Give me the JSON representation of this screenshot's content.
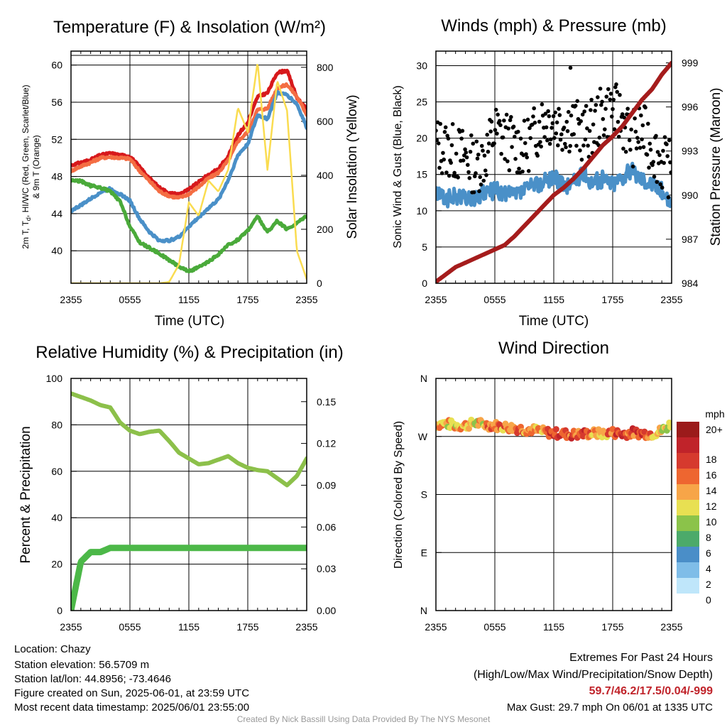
{
  "charts": {
    "temperature": {
      "title": "Temperature (F) & Insolation (W/m²)",
      "ylabel_left": [
        "2m T, T",
        "d",
        ", HI/WC (Red, Green, Scarlet/Blue)",
        "& 9m T (Orange)"
      ],
      "ylabel_right": "Solar Insolation (Yellow)",
      "xlabel": "Time (UTC)"
    },
    "winds": {
      "title": "Winds (mph) & Pressure (mb)",
      "ylabel_left": "Sonic Wind & Gust (Blue, Black)",
      "ylabel_right": "Station Pressure (Maroon)",
      "xlabel": "Time (UTC)"
    },
    "humidity": {
      "title": "Relative Humidity (%) & Precipitation (in)",
      "ylabel_left": "Percent & Precipitation"
    },
    "direction": {
      "title": "Wind Direction",
      "ylabel_left": "Direction (Colored By Speed)",
      "legend_title": "mph"
    }
  },
  "chart_data": [
    {
      "type": "line",
      "x_ticks": [
        "2355",
        "0555",
        "1155",
        "1755",
        "2355"
      ],
      "y_ticks_left": [
        40,
        44,
        48,
        52,
        56,
        60
      ],
      "ylim_left": [
        36.5,
        61.5
      ],
      "y_ticks_right": [
        0,
        200,
        400,
        600,
        800
      ],
      "ylim_right": [
        0,
        860
      ],
      "grid": true,
      "x_hours": [
        0,
        1,
        2,
        3,
        4,
        5,
        6,
        7,
        8,
        9,
        10,
        11,
        12,
        13,
        14,
        15,
        16,
        17,
        18,
        19,
        20,
        21,
        22,
        23,
        24
      ],
      "series": [
        {
          "name": "2m T",
          "color": "#d7191c",
          "axis": "left",
          "values": [
            49.2,
            49.5,
            49.8,
            50.3,
            50.5,
            50.3,
            50.2,
            49.0,
            47.8,
            46.8,
            46.2,
            46.1,
            46.6,
            47.4,
            48.2,
            48.8,
            50.2,
            52.5,
            53.8,
            56.6,
            57.0,
            59.2,
            59.4,
            56.5,
            55.2
          ]
        },
        {
          "name": "9m T",
          "color": "#f46d43",
          "axis": "left",
          "values": [
            48.6,
            49.1,
            49.5,
            50.0,
            50.1,
            50.0,
            49.9,
            48.6,
            47.5,
            46.4,
            45.9,
            45.7,
            46.1,
            46.9,
            47.8,
            48.4,
            49.7,
            51.8,
            52.8,
            55.2,
            55.3,
            57.5,
            57.9,
            56.6,
            54.7
          ]
        },
        {
          "name": "HI/WC",
          "color": "#4a90c8",
          "axis": "left",
          "values": [
            44.3,
            44.9,
            45.6,
            46.3,
            46.7,
            46.1,
            45.4,
            43.4,
            42.0,
            41.1,
            41.1,
            41.5,
            42.6,
            43.6,
            44.6,
            45.5,
            47.6,
            50.3,
            51.5,
            54.6,
            54.2,
            57.0,
            56.8,
            55.8,
            53.3
          ]
        },
        {
          "name": "Td",
          "color": "#4aaa3a",
          "axis": "left",
          "values": [
            47.6,
            47.5,
            47.0,
            46.8,
            46.4,
            45.3,
            42.6,
            40.9,
            40.3,
            39.7,
            39.0,
            38.3,
            37.8,
            38.2,
            38.8,
            39.6,
            40.6,
            41.2,
            42.2,
            43.7,
            42.0,
            43.2,
            42.3,
            43.0,
            43.8
          ]
        },
        {
          "name": "Solar Insolation",
          "color": "#fadc50",
          "axis": "right",
          "values": [
            0,
            0,
            0,
            0,
            0,
            0,
            0,
            0,
            0,
            0,
            5,
            70,
            300,
            250,
            380,
            340,
            420,
            650,
            560,
            820,
            420,
            750,
            640,
            120,
            15
          ]
        }
      ]
    },
    {
      "type": "line",
      "x_ticks": [
        "2355",
        "0555",
        "1155",
        "1755",
        "2355"
      ],
      "y_ticks_left": [
        0,
        5,
        10,
        15,
        20,
        25,
        30
      ],
      "ylim_left": [
        0,
        32
      ],
      "y_ticks_right": [
        984,
        987,
        990,
        993,
        996,
        999
      ],
      "ylim_right": [
        984,
        999.8
      ],
      "grid": true,
      "x_hours": [
        0,
        1,
        2,
        3,
        4,
        5,
        6,
        7,
        8,
        9,
        10,
        11,
        12,
        13,
        14,
        15,
        16,
        17,
        18,
        19,
        20,
        21,
        22,
        23,
        24
      ],
      "series": [
        {
          "name": "Sonic Wind",
          "color": "#4a90c8",
          "axis": "left",
          "values": [
            12.5,
            11.5,
            12.0,
            11.8,
            11.5,
            12.5,
            12.8,
            12.3,
            12.0,
            12.8,
            13.5,
            14.0,
            14.8,
            13.2,
            14.0,
            15.0,
            14.0,
            14.3,
            13.8,
            14.8,
            15.5,
            14.5,
            13.8,
            12.8,
            11.0
          ]
        },
        {
          "name": "Gust",
          "color": "#000000",
          "axis": "left",
          "marker": "dot",
          "values": [
            19.2,
            18.5,
            18.0,
            17.5,
            16.0,
            17.5,
            21.0,
            20.0,
            19.0,
            18.5,
            20.5,
            23.0,
            22.5,
            22.0,
            22.0,
            20.5,
            21.5,
            23.5,
            24.0,
            22.5,
            20.0,
            21.0,
            19.0,
            16.5,
            15.5
          ],
          "max_gust": 29.7
        },
        {
          "name": "Station Pressure",
          "color": "#a51c1c",
          "axis": "right",
          "values": [
            984.1,
            984.6,
            985.1,
            985.4,
            985.7,
            986.0,
            986.3,
            986.6,
            987.2,
            987.9,
            988.6,
            989.3,
            990.0,
            990.5,
            991.1,
            991.8,
            992.6,
            993.4,
            994.0,
            994.7,
            995.6,
            996.5,
            997.2,
            998.2,
            999.0
          ]
        }
      ]
    },
    {
      "type": "line",
      "x_ticks": [
        "2355",
        "0555",
        "1155",
        "1755",
        "2355"
      ],
      "y_ticks_left": [
        0,
        20,
        40,
        60,
        80,
        100
      ],
      "ylim_left": [
        0,
        100
      ],
      "y_ticks_right": [
        "0.00",
        "0.03",
        "0.06",
        "0.09",
        "0.12",
        "0.15"
      ],
      "ylim_right": [
        0,
        0.1667
      ],
      "grid": true,
      "x_hours": [
        0,
        1,
        2,
        3,
        4,
        5,
        6,
        7,
        8,
        9,
        10,
        11,
        12,
        13,
        14,
        15,
        16,
        17,
        18,
        19,
        20,
        21,
        22,
        23,
        24
      ],
      "series": [
        {
          "name": "Relative Humidity",
          "color": "#8cc04a",
          "axis": "left",
          "values": [
            93.5,
            92.0,
            90.5,
            88.5,
            87.5,
            81.0,
            77.5,
            76.0,
            77.0,
            77.5,
            73.0,
            68.0,
            65.5,
            63.0,
            63.5,
            65.0,
            66.5,
            63.5,
            61.5,
            60.5,
            60.0,
            57.0,
            54.0,
            58.0,
            65.5
          ]
        },
        {
          "name": "Precipitation",
          "color": "#4cb848",
          "axis": "right",
          "values": [
            0.0,
            0.035,
            0.042,
            0.042,
            0.045,
            0.045,
            0.045,
            0.045,
            0.045,
            0.045,
            0.045,
            0.045,
            0.045,
            0.045,
            0.045,
            0.045,
            0.045,
            0.045,
            0.045,
            0.045,
            0.045,
            0.045,
            0.045,
            0.045,
            0.045
          ]
        }
      ]
    },
    {
      "type": "scatter",
      "x_ticks": [
        "2355",
        "0555",
        "1155",
        "1755",
        "2355"
      ],
      "y_ticks_left": [
        "N",
        "E",
        "S",
        "W",
        "N"
      ],
      "ylim_left": [
        0,
        360
      ],
      "grid": true,
      "x_hours": [
        0,
        1,
        2,
        3,
        4,
        5,
        6,
        7,
        8,
        9,
        10,
        11,
        12,
        13,
        14,
        15,
        16,
        17,
        18,
        19,
        20,
        21,
        22,
        23,
        24
      ],
      "series": [
        {
          "name": "Wind Direction",
          "axis": "left",
          "values": [
            289,
            290,
            287,
            287,
            291,
            288,
            287,
            285,
            283,
            281,
            280,
            277,
            275,
            274,
            273,
            274,
            275,
            274,
            276,
            274,
            276,
            275,
            274,
            279,
            290
          ],
          "speeds": [
            11,
            12,
            10,
            13,
            9,
            12,
            13,
            14,
            14,
            13,
            11,
            12,
            17,
            15,
            16,
            15,
            12,
            11,
            14,
            17,
            15,
            16,
            12,
            10,
            8
          ]
        }
      ],
      "legend": {
        "labels": [
          "20+",
          "18",
          "16",
          "14",
          "12",
          "10",
          "8",
          "6",
          "4",
          "2",
          "0"
        ],
        "colors": [
          "#9b1b1b",
          "#c0232a",
          "#d63a2e",
          "#ee6630",
          "#f7a548",
          "#e8e052",
          "#8bc34a",
          "#4caa6a",
          "#4a8ec8",
          "#7fbde8",
          "#bfe6fa"
        ]
      }
    }
  ],
  "footer": {
    "location": "Location: Chazy",
    "elevation": "Station elevation: 56.5709 m",
    "latlon": "Station lat/lon: 44.8956; -73.4646",
    "created": "Figure created on Sun, 2025-06-01, at 23:59 UTC",
    "recent": "Most recent data timestamp: 2025/06/01 23:55:00",
    "extremes_title": "Extremes For Past 24 Hours",
    "extremes_legend": "(High/Low/Max Wind/Precipitation/Snow Depth)",
    "extremes_values": "59.7/46.2/17.5/0.04/-999",
    "max_gust": "Max Gust: 29.7 mph On 06/01 at 1335 UTC",
    "credit": "Created By Nick Bassill Using Data Provided By The NYS Mesonet",
    "extremes_color": "#c0232a"
  }
}
